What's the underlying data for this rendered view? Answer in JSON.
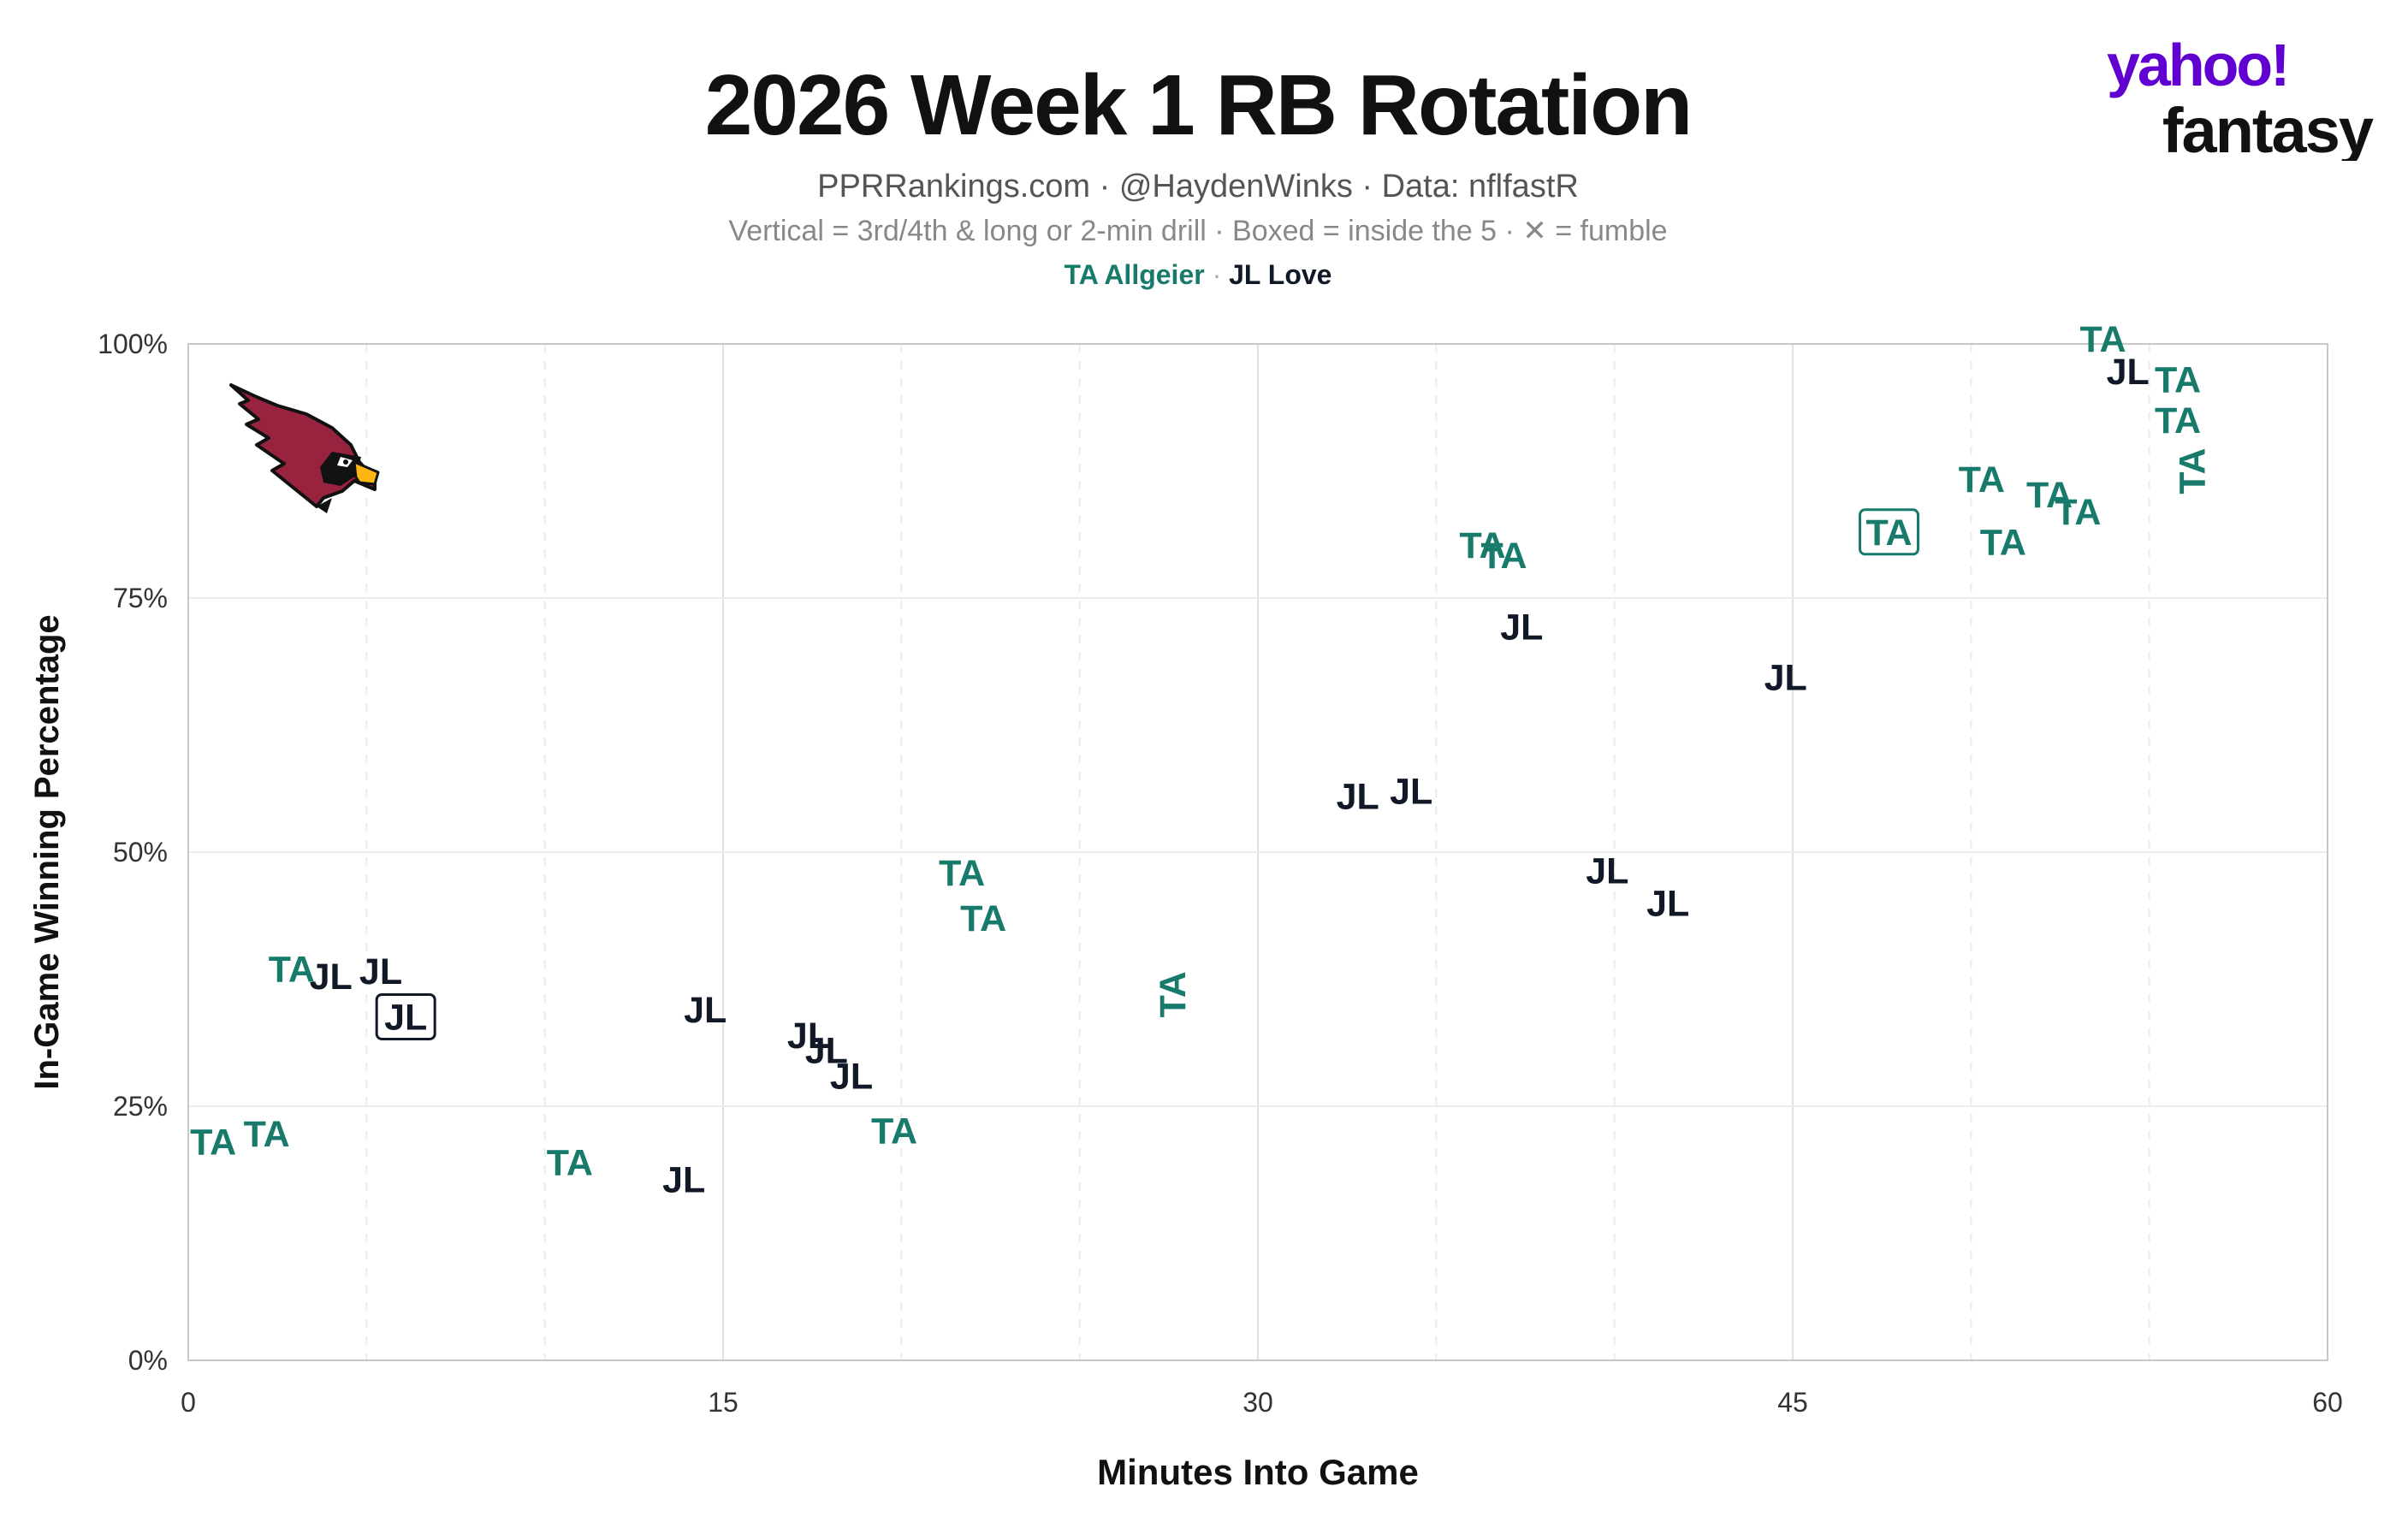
{
  "title": "2026 Week 1 RB Rotation",
  "subtitle": "PPRRankings.com · @HaydenWinks · Data: nflfastR",
  "note": "Vertical = 3rd/4th & long or 2-min drill · Boxed = inside the 5 · ✕ = fumble",
  "brand": {
    "line1": "yahoo!",
    "line2": "fantasy",
    "color": "#6001d2"
  },
  "team_logo": "cardinals-logo",
  "chart_data": {
    "type": "scatter",
    "xlabel": "Minutes Into Game",
    "ylabel": "In-Game Winning Percentage",
    "xlim": [
      0,
      60
    ],
    "ylim": [
      0,
      100
    ],
    "xticks": [
      "0",
      "15",
      "30",
      "45",
      "60"
    ],
    "yticks": [
      "0%",
      "25%",
      "50%",
      "75%",
      "100%"
    ],
    "grid": true,
    "legend_placement": "top-center",
    "series": [
      {
        "name": "TA Allgeier",
        "label": "TA",
        "color": "#177a6b",
        "points": [
          {
            "x": 0.7,
            "y": 21.5
          },
          {
            "x": 2.2,
            "y": 22.3
          },
          {
            "x": 2.9,
            "y": 38.5
          },
          {
            "x": 10.7,
            "y": 19.5
          },
          {
            "x": 19.8,
            "y": 22.6
          },
          {
            "x": 21.7,
            "y": 48
          },
          {
            "x": 22.3,
            "y": 43.5
          },
          {
            "x": 27.6,
            "y": 36,
            "vertical": true
          },
          {
            "x": 36.3,
            "y": 80.2
          },
          {
            "x": 36.9,
            "y": 79.2
          },
          {
            "x": 47.7,
            "y": 81.5,
            "boxed": true
          },
          {
            "x": 50.3,
            "y": 86.7
          },
          {
            "x": 50.9,
            "y": 80.5
          },
          {
            "x": 52.2,
            "y": 85.2
          },
          {
            "x": 53,
            "y": 83.5
          },
          {
            "x": 53.7,
            "y": 100.5
          },
          {
            "x": 55.8,
            "y": 96.5
          },
          {
            "x": 55.8,
            "y": 92.5
          },
          {
            "x": 56.2,
            "y": 87.5,
            "vertical": true
          }
        ]
      },
      {
        "name": "JL Love",
        "label": "JL",
        "color": "#111827",
        "points": [
          {
            "x": 4,
            "y": 37.8
          },
          {
            "x": 5.4,
            "y": 38.3
          },
          {
            "x": 6.1,
            "y": 33.8,
            "boxed": true
          },
          {
            "x": 13.9,
            "y": 17.8
          },
          {
            "x": 14.5,
            "y": 34.5
          },
          {
            "x": 17.4,
            "y": 32
          },
          {
            "x": 17.9,
            "y": 30.5
          },
          {
            "x": 18.6,
            "y": 28
          },
          {
            "x": 32.8,
            "y": 55.5
          },
          {
            "x": 34.3,
            "y": 56
          },
          {
            "x": 37.4,
            "y": 72.2
          },
          {
            "x": 39.8,
            "y": 48.2
          },
          {
            "x": 41.5,
            "y": 45
          },
          {
            "x": 44.8,
            "y": 67.2
          },
          {
            "x": 54.4,
            "y": 97.3
          }
        ]
      }
    ]
  }
}
